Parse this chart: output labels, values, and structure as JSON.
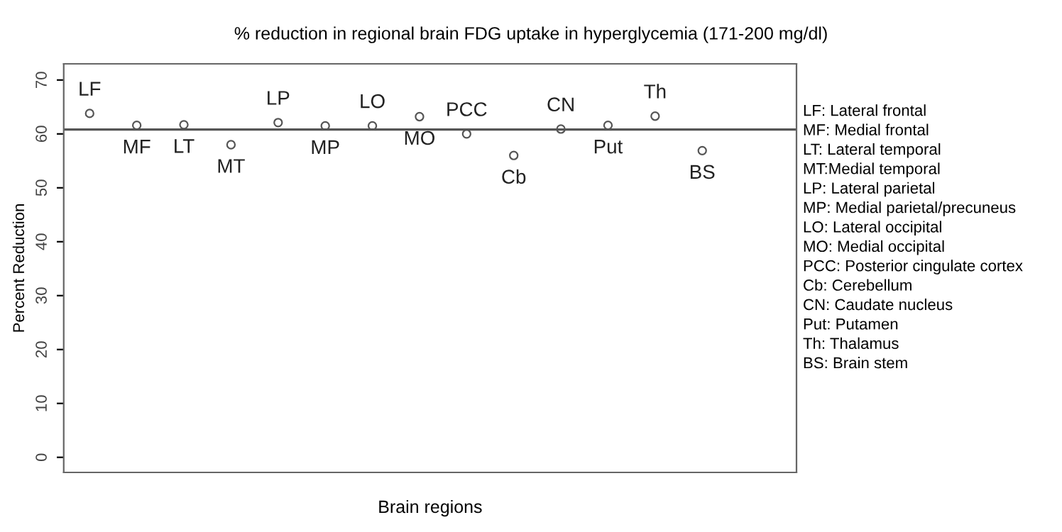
{
  "chart_data": {
    "type": "scatter",
    "title": "% reduction in regional brain FDG uptake in hyperglycemia (171-200 mg/dl)",
    "xlabel": "Brain regions",
    "ylabel": "Percent Reduction",
    "categories": [
      "LF",
      "MF",
      "LT",
      "MT",
      "LP",
      "MP",
      "LO",
      "MO",
      "PCC",
      "Cb",
      "CN",
      "Put",
      "Th",
      "BS"
    ],
    "series": [
      {
        "color": "#555555",
        "values": [
          63.8,
          61.6,
          61.7,
          58.0,
          62.1,
          61.5,
          61.5,
          63.2,
          60.0,
          56.0,
          60.9,
          61.6,
          63.3,
          56.9
        ]
      }
    ],
    "marker": "circle",
    "ylim": [
      -2.8,
      73
    ],
    "yticks": [
      0,
      10,
      20,
      30,
      40,
      50,
      60,
      70
    ],
    "tick_labels": "y",
    "grid": false,
    "ref_lines": [
      {
        "axis": "y",
        "value": 60.8,
        "color": "#555555"
      }
    ],
    "annotations": [
      "LF: Lateral frontal",
      "MF: Medial frontal",
      "LT: Lateral temporal",
      "MT:Medial temporal",
      "LP: Lateral parietal",
      "MP: Medial parietal/precuneus",
      "LO: Lateral occipital",
      "MO: Medial occipital",
      "PCC: Posterior cingulate cortex",
      "Cb: Cerebellum",
      "CN: Caudate nucleus",
      "Put: Putamen",
      "Th: Thalamus",
      "BS: Brain stem"
    ]
  }
}
